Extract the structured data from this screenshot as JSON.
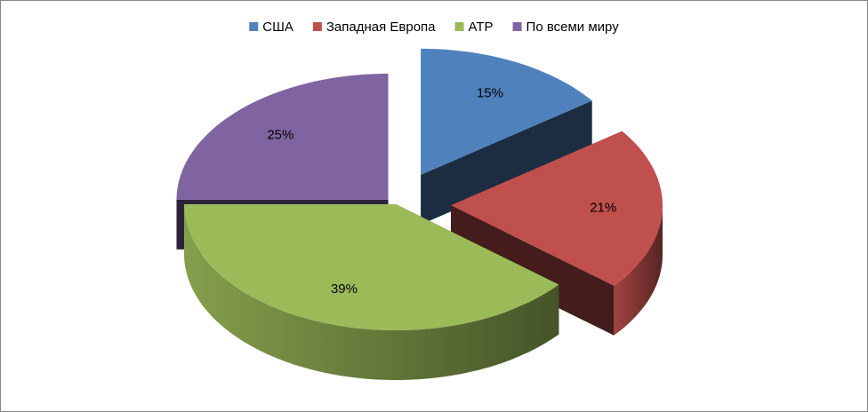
{
  "chart_data": {
    "type": "pie",
    "style": "3d-exploded",
    "categories": [
      "США",
      "Западная Европа",
      "АТР",
      "По всеми миру"
    ],
    "values": [
      15,
      21,
      39,
      25
    ],
    "value_labels": [
      "15%",
      "21%",
      "39%",
      "25%"
    ],
    "colors": [
      "#4f81bd",
      "#c0504d",
      "#9bbb59",
      "#8064a2"
    ],
    "legend": "top"
  }
}
